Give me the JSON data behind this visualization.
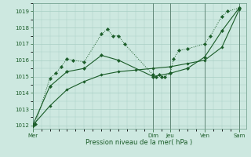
{
  "title": "",
  "xlabel": "Pression niveau de la mer( hPa )",
  "ylabel": "",
  "bg_color": "#cde8e0",
  "grid_color": "#a8cfc4",
  "line_color": "#1a5c28",
  "ylim": [
    1011.8,
    1019.5
  ],
  "yticks": [
    1012,
    1013,
    1014,
    1015,
    1016,
    1017,
    1018,
    1019
  ],
  "day_labels": [
    "Mer",
    "Dim",
    "Jeu",
    "Ven",
    "Sam"
  ],
  "day_positions": [
    0.0,
    3.5,
    4.0,
    5.0,
    6.0
  ],
  "xlim": [
    0.0,
    6.2
  ],
  "series1_x": [
    0.0,
    0.08,
    0.5,
    0.67,
    0.83,
    1.0,
    1.17,
    1.5,
    2.0,
    2.17,
    2.33,
    2.5,
    2.67,
    3.5,
    3.58,
    3.67,
    3.75,
    3.83,
    4.0,
    4.1,
    4.25,
    4.5,
    5.0,
    5.17,
    5.5,
    5.67,
    6.0
  ],
  "series1_y": [
    1012.0,
    1012.1,
    1014.9,
    1015.2,
    1015.6,
    1016.1,
    1016.0,
    1015.9,
    1017.6,
    1017.9,
    1017.5,
    1017.5,
    1017.0,
    1015.1,
    1015.0,
    1015.1,
    1015.0,
    1015.0,
    1015.2,
    1016.1,
    1016.6,
    1016.7,
    1017.0,
    1017.5,
    1018.7,
    1019.0,
    1019.2
  ],
  "series1_style": "dotted",
  "series2_x": [
    0.0,
    0.5,
    1.0,
    1.5,
    2.0,
    2.5,
    3.5,
    4.0,
    4.5,
    5.0,
    5.5,
    6.0
  ],
  "series2_y": [
    1012.0,
    1014.4,
    1015.3,
    1015.5,
    1016.3,
    1016.0,
    1015.0,
    1015.2,
    1015.5,
    1016.2,
    1017.8,
    1019.2
  ],
  "series2_style": "solid",
  "series3_x": [
    0.0,
    0.5,
    1.0,
    1.5,
    2.0,
    2.5,
    3.0,
    3.5,
    4.0,
    4.5,
    5.0,
    5.5,
    6.0
  ],
  "series3_y": [
    1012.0,
    1013.2,
    1014.2,
    1014.7,
    1015.1,
    1015.3,
    1015.4,
    1015.5,
    1015.6,
    1015.8,
    1016.0,
    1016.8,
    1019.1
  ],
  "series3_style": "solid",
  "vline_positions": [
    0.0,
    3.5,
    4.0,
    5.0,
    6.0
  ],
  "vline_color": "#557a6a"
}
